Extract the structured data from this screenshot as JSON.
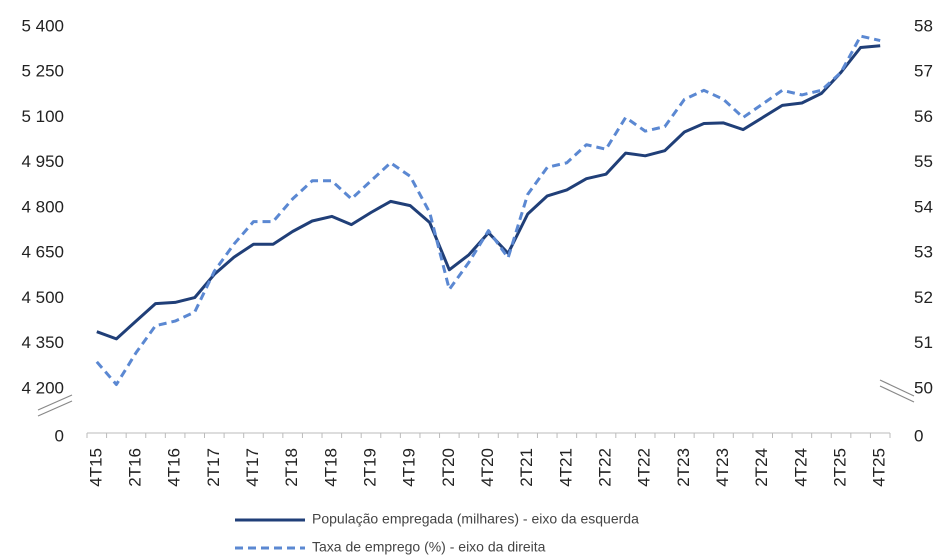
{
  "chart_data": {
    "type": "line",
    "categories": [
      "4T15",
      null,
      "2T16",
      null,
      "4T16",
      null,
      "2T17",
      null,
      "4T17",
      null,
      "2T18",
      null,
      "4T18",
      null,
      "2T19",
      null,
      "4T19",
      null,
      "2T20",
      null,
      "4T20",
      null,
      "2T21",
      null,
      "4T21",
      null,
      "2T22",
      null,
      "4T22",
      null,
      "2T23",
      null,
      "4T23",
      null,
      "2T24",
      null,
      "4T24",
      null,
      "2T25",
      null,
      "4T25"
    ],
    "series": [
      {
        "name": "População empregada (milhares) - eixo da esquerda",
        "color": "#203f78",
        "style": "solid",
        "values": [
          4390,
          4366,
          4425,
          4483,
          4487,
          4503,
          4580,
          4637,
          4680,
          4680,
          4722,
          4757,
          4772,
          4745,
          4785,
          4822,
          4808,
          4752,
          4595,
          4645,
          4718,
          4650,
          4780,
          4840,
          4860,
          4897,
          4912,
          4982,
          4973,
          4990,
          5052,
          5080,
          5082,
          5060,
          5100,
          5140,
          5148,
          5180,
          5250,
          5332,
          5338
        ]
      },
      {
        "name": "Taxa de emprego (%) - eixo da direita",
        "color": "#5b88d2",
        "style": "dashed",
        "axis": "y2",
        "values": [
          50.6,
          50.1,
          50.8,
          51.4,
          51.5,
          51.7,
          52.6,
          53.2,
          53.7,
          53.7,
          54.2,
          54.6,
          54.6,
          54.2,
          54.6,
          55.0,
          54.7,
          53.9,
          52.2,
          52.8,
          53.5,
          52.9,
          54.3,
          54.9,
          55.0,
          55.4,
          55.3,
          56.0,
          55.7,
          55.8,
          56.4,
          56.6,
          56.4,
          56.0,
          56.3,
          56.6,
          56.5,
          56.6,
          57.0,
          57.8,
          57.7
        ]
      }
    ],
    "ylim": [
      4200,
      5400
    ],
    "yticks": [
      0,
      {
        "value": 4200,
        "label": "4 200"
      },
      {
        "value": 4350,
        "label": "4 350"
      },
      {
        "value": 4500,
        "label": "4 500"
      },
      {
        "value": 4650,
        "label": "4 650"
      },
      {
        "value": 4800,
        "label": "4 800"
      },
      {
        "value": 4950,
        "label": "4 950"
      },
      {
        "value": 5100,
        "label": "5 100"
      },
      {
        "value": 5250,
        "label": "5 250"
      },
      {
        "value": 5400,
        "label": "5 400"
      }
    ],
    "y2lim": [
      50,
      58
    ],
    "y2ticks": [
      0,
      50,
      51,
      52,
      53,
      54,
      55,
      56,
      57,
      58
    ],
    "axis_break": true
  }
}
